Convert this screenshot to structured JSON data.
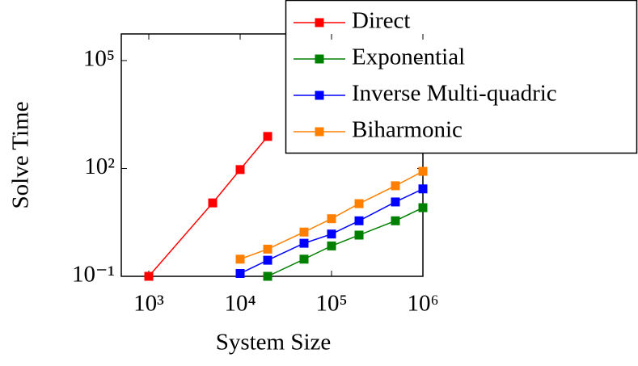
{
  "chart_data": {
    "type": "line",
    "xlabel": "System Size",
    "ylabel": "Solve Time",
    "xscale": "log",
    "yscale": "log",
    "xlim": [
      500,
      1000000
    ],
    "ylim": [
      0.1,
      550000
    ],
    "xticks": [
      {
        "value": 1000,
        "label": "10³"
      },
      {
        "value": 10000,
        "label": "10⁴"
      },
      {
        "value": 100000,
        "label": "10⁵"
      },
      {
        "value": 1000000,
        "label": "10⁶"
      }
    ],
    "yticks": [
      {
        "value": 0.1,
        "label": "10⁻¹"
      },
      {
        "value": 100,
        "label": "10²"
      },
      {
        "value": 100000,
        "label": "10⁵"
      }
    ],
    "legend": "upper right",
    "series": [
      {
        "name": "Direct",
        "color": "#ff0000",
        "x": [
          1000,
          5000,
          10000,
          20000
        ],
        "values": [
          0.1,
          11,
          93,
          775
        ]
      },
      {
        "name": "Exponential",
        "color": "#008000",
        "x": [
          20000,
          50000,
          100000,
          200000,
          500000,
          1000000
        ],
        "values": [
          0.1,
          0.3,
          0.7,
          1.4,
          3.5,
          8.1
        ]
      },
      {
        "name": "Inverse Multi-quadric",
        "color": "#0000ff",
        "x": [
          10000,
          20000,
          50000,
          100000,
          200000,
          500000,
          1000000
        ],
        "values": [
          0.12,
          0.28,
          0.83,
          1.5,
          3.5,
          11.7,
          27
        ]
      },
      {
        "name": "Biharmonic",
        "color": "#ff8000",
        "x": [
          10000,
          20000,
          50000,
          100000,
          200000,
          500000,
          1000000
        ],
        "values": [
          0.3,
          0.57,
          1.7,
          4,
          10.5,
          33,
          83
        ]
      }
    ]
  }
}
